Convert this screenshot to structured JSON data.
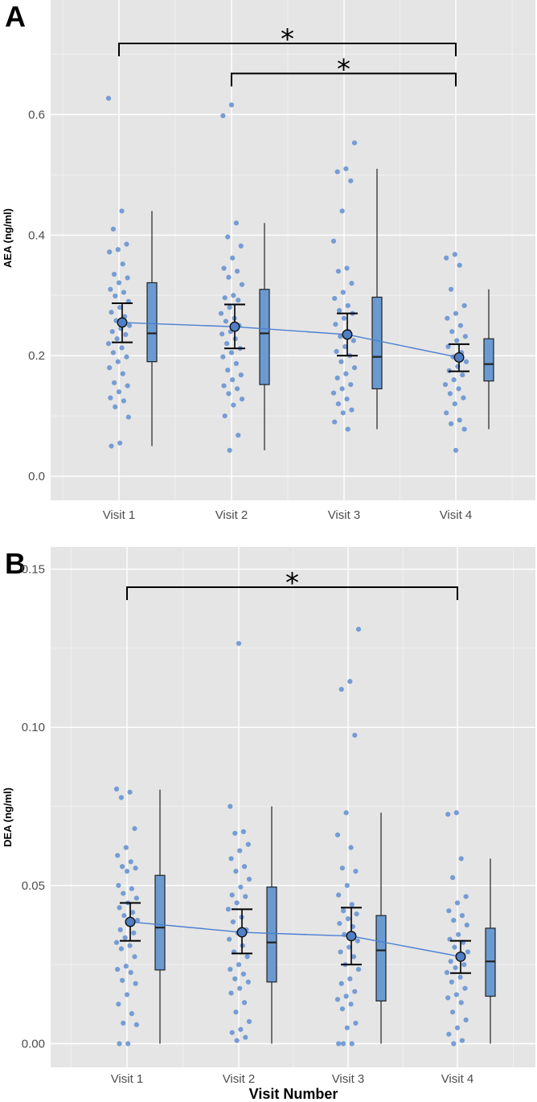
{
  "chart_data": [
    {
      "type": "scatter",
      "panel_letter": "A",
      "title": "",
      "xlabel": "",
      "ylabel": "AEA (ng/ml)",
      "categories": [
        "Visit 1",
        "Visit 2",
        "Visit 3",
        "Visit 4"
      ],
      "ylim": [
        -0.04,
        0.79
      ],
      "yticks": [
        0.0,
        0.2,
        0.4,
        0.6
      ],
      "ytick_labels": [
        "0.0",
        "0.2",
        "0.4",
        "0.6"
      ],
      "means": [
        0.255,
        0.248,
        0.235,
        0.197
      ],
      "error_bars": [
        {
          "low": 0.222,
          "high": 0.287
        },
        {
          "low": 0.212,
          "high": 0.285
        },
        {
          "low": 0.2,
          "high": 0.27
        },
        {
          "low": 0.174,
          "high": 0.219
        }
      ],
      "boxplots": [
        {
          "min": 0.05,
          "q1": 0.19,
          "median": 0.237,
          "q3": 0.321,
          "max": 0.44
        },
        {
          "min": 0.043,
          "q1": 0.152,
          "median": 0.237,
          "q3": 0.31,
          "max": 0.42
        },
        {
          "min": 0.078,
          "q1": 0.145,
          "median": 0.198,
          "q3": 0.297,
          "max": 0.51
        },
        {
          "min": 0.078,
          "q1": 0.158,
          "median": 0.186,
          "q3": 0.228,
          "max": 0.31
        }
      ],
      "points": [
        [
          0.627,
          0.44,
          0.41,
          0.385,
          0.376,
          0.372,
          0.352,
          0.335,
          0.329,
          0.321,
          0.31,
          0.305,
          0.299,
          0.29,
          0.28,
          0.272,
          0.265,
          0.258,
          0.25,
          0.245,
          0.24,
          0.235,
          0.228,
          0.22,
          0.213,
          0.205,
          0.198,
          0.19,
          0.18,
          0.17,
          0.155,
          0.15,
          0.14,
          0.13,
          0.125,
          0.115,
          0.098,
          0.055,
          0.05
        ],
        [
          0.616,
          0.598,
          0.42,
          0.397,
          0.382,
          0.362,
          0.345,
          0.34,
          0.33,
          0.318,
          0.3,
          0.296,
          0.292,
          0.28,
          0.27,
          0.262,
          0.257,
          0.25,
          0.24,
          0.236,
          0.228,
          0.22,
          0.212,
          0.205,
          0.198,
          0.187,
          0.176,
          0.168,
          0.16,
          0.15,
          0.145,
          0.137,
          0.128,
          0.118,
          0.1,
          0.068,
          0.043
        ],
        [
          0.553,
          0.51,
          0.505,
          0.49,
          0.44,
          0.39,
          0.345,
          0.34,
          0.32,
          0.305,
          0.295,
          0.283,
          0.275,
          0.27,
          0.262,
          0.252,
          0.24,
          0.232,
          0.225,
          0.215,
          0.207,
          0.2,
          0.19,
          0.18,
          0.17,
          0.163,
          0.152,
          0.145,
          0.138,
          0.128,
          0.12,
          0.11,
          0.105,
          0.09,
          0.078
        ],
        [
          0.368,
          0.362,
          0.35,
          0.31,
          0.283,
          0.27,
          0.262,
          0.25,
          0.24,
          0.232,
          0.225,
          0.215,
          0.205,
          0.198,
          0.19,
          0.182,
          0.175,
          0.168,
          0.16,
          0.152,
          0.145,
          0.137,
          0.13,
          0.12,
          0.105,
          0.093,
          0.087,
          0.078,
          0.043
        ]
      ],
      "significance": [
        {
          "from": "Visit 1",
          "to": "Visit 4",
          "y": 0.718,
          "label": "*"
        },
        {
          "from": "Visit 2",
          "to": "Visit 4",
          "y": 0.668,
          "label": "*"
        }
      ],
      "colors": {
        "points": "#5b8bd0",
        "box": "#6b9ad1",
        "line": "#4a7fd0",
        "panel": "#e5e5e5",
        "grid": "#ffffff"
      }
    },
    {
      "type": "scatter",
      "panel_letter": "B",
      "title": "",
      "xlabel": "Visit Number",
      "ylabel": "DEA (ng/ml)",
      "categories": [
        "Visit 1",
        "Visit 2",
        "Visit 3",
        "Visit 4"
      ],
      "ylim": [
        -0.0075,
        0.157
      ],
      "yticks": [
        0.0,
        0.05,
        0.1,
        0.15
      ],
      "ytick_labels": [
        "0.00",
        "0.05",
        "0.10",
        "0.15"
      ],
      "means": [
        0.0385,
        0.0352,
        0.034,
        0.0275
      ],
      "error_bars": [
        {
          "low": 0.0325,
          "high": 0.0445
        },
        {
          "low": 0.0285,
          "high": 0.0425
        },
        {
          "low": 0.025,
          "high": 0.043
        },
        {
          "low": 0.0223,
          "high": 0.0325
        }
      ],
      "boxplots": [
        {
          "min": 0.0,
          "q1": 0.0233,
          "median": 0.0367,
          "q3": 0.0532,
          "max": 0.0803
        },
        {
          "min": 0.0,
          "q1": 0.0195,
          "median": 0.032,
          "q3": 0.0495,
          "max": 0.075
        },
        {
          "min": 0.0,
          "q1": 0.0135,
          "median": 0.0295,
          "q3": 0.0405,
          "max": 0.073
        },
        {
          "min": 0.0,
          "q1": 0.015,
          "median": 0.026,
          "q3": 0.0365,
          "max": 0.0585
        }
      ],
      "points": [
        [
          0.0805,
          0.0795,
          0.0778,
          0.068,
          0.062,
          0.0595,
          0.0575,
          0.056,
          0.0555,
          0.0545,
          0.05,
          0.049,
          0.0475,
          0.046,
          0.0445,
          0.043,
          0.0415,
          0.0405,
          0.039,
          0.038,
          0.036,
          0.035,
          0.0335,
          0.032,
          0.031,
          0.03,
          0.0275,
          0.0245,
          0.0235,
          0.0225,
          0.02,
          0.019,
          0.0155,
          0.0125,
          0.0095,
          0.0065,
          0.006,
          0.0,
          0.0
        ],
        [
          0.1265,
          0.075,
          0.067,
          0.0665,
          0.063,
          0.061,
          0.0585,
          0.056,
          0.0545,
          0.052,
          0.0495,
          0.047,
          0.0465,
          0.0445,
          0.0425,
          0.04,
          0.0385,
          0.036,
          0.035,
          0.033,
          0.031,
          0.029,
          0.0275,
          0.025,
          0.0235,
          0.022,
          0.0205,
          0.0195,
          0.0175,
          0.016,
          0.013,
          0.01,
          0.007,
          0.0045,
          0.0035,
          0.002,
          0.001
        ],
        [
          0.131,
          0.1145,
          0.112,
          0.0975,
          0.073,
          0.066,
          0.062,
          0.0555,
          0.0545,
          0.05,
          0.047,
          0.044,
          0.042,
          0.041,
          0.0395,
          0.038,
          0.037,
          0.0345,
          0.0325,
          0.0305,
          0.029,
          0.0275,
          0.025,
          0.0235,
          0.0205,
          0.019,
          0.0165,
          0.015,
          0.014,
          0.0125,
          0.011,
          0.0065,
          0.005,
          0.0,
          0.0,
          0.0
        ],
        [
          0.073,
          0.0725,
          0.0585,
          0.0525,
          0.0465,
          0.0445,
          0.042,
          0.0405,
          0.039,
          0.0375,
          0.0345,
          0.033,
          0.032,
          0.0305,
          0.029,
          0.0275,
          0.026,
          0.025,
          0.024,
          0.0225,
          0.021,
          0.0195,
          0.0175,
          0.0155,
          0.0145,
          0.013,
          0.01,
          0.0075,
          0.005,
          0.003,
          0.001,
          0.0
        ]
      ],
      "significance": [
        {
          "from": "Visit 1",
          "to": "Visit 4",
          "y": 0.1443,
          "label": "*"
        }
      ],
      "colors": {
        "points": "#5b8bd0",
        "box": "#6b9ad1",
        "line": "#4a7fd0",
        "panel": "#e5e5e5",
        "grid": "#ffffff"
      }
    }
  ]
}
